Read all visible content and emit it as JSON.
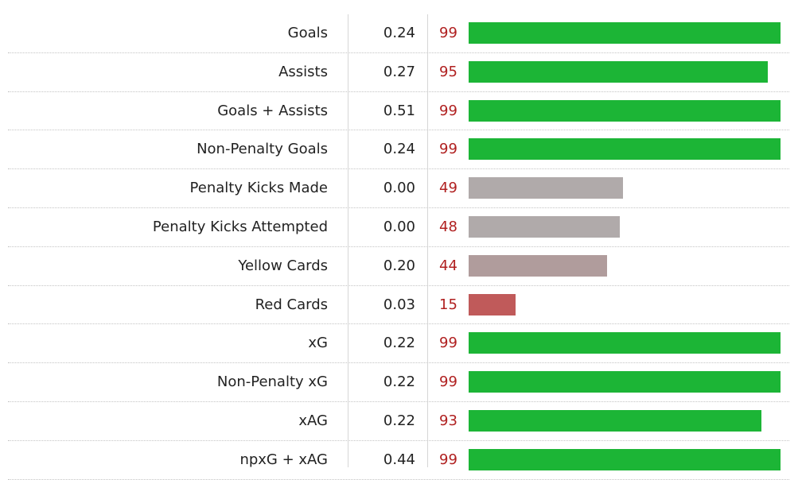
{
  "chart_data": {
    "type": "bar",
    "orientation": "horizontal",
    "title": "",
    "xlabel": "",
    "ylabel": "",
    "xlim": [
      0,
      100
    ],
    "categories": [
      "Goals",
      "Assists",
      "Goals + Assists",
      "Non-Penalty Goals",
      "Penalty Kicks Made",
      "Penalty Kicks Attempted",
      "Yellow Cards",
      "Red Cards",
      "xG",
      "Non-Penalty xG",
      "xAG",
      "npxG + xAG"
    ],
    "per90_values": [
      "0.24",
      "0.27",
      "0.51",
      "0.24",
      "0.00",
      "0.00",
      "0.20",
      "0.03",
      "0.22",
      "0.22",
      "0.22",
      "0.44"
    ],
    "values": [
      99,
      95,
      99,
      99,
      49,
      48,
      44,
      15,
      99,
      99,
      93,
      99
    ],
    "bar_colors": [
      "#1cb536",
      "#1cb536",
      "#1cb536",
      "#1cb536",
      "#b0aaaa",
      "#b0aaaa",
      "#b09c9c",
      "#c05a5a",
      "#1cb536",
      "#1cb536",
      "#1cb536",
      "#1cb536"
    ],
    "percentile_text_color": "#b02020",
    "grid": false,
    "legend": "none"
  }
}
